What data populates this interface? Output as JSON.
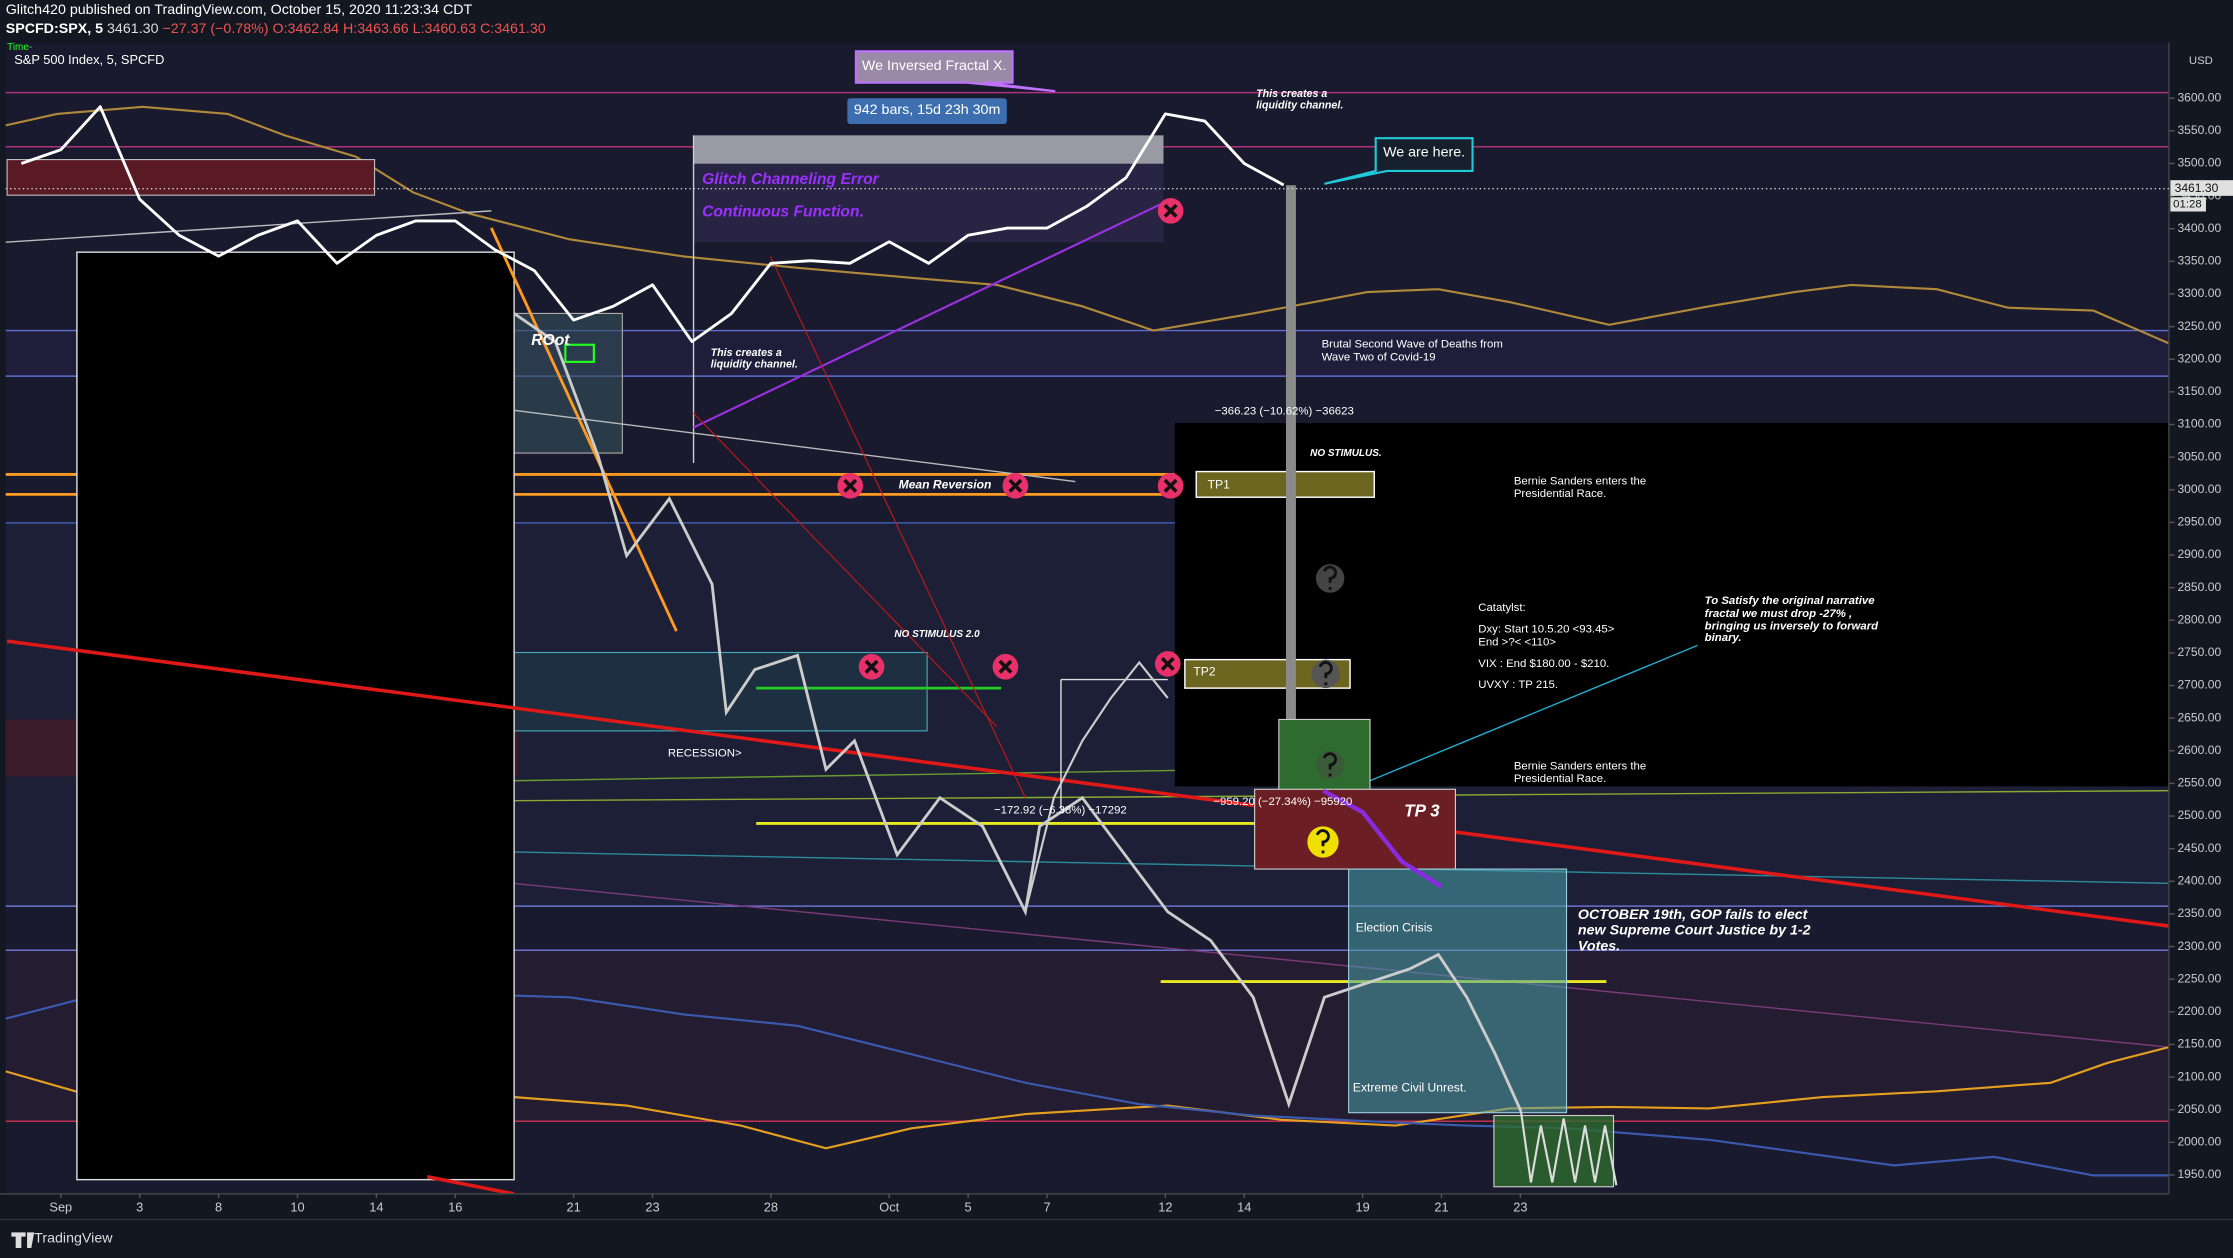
{
  "chart_data": {
    "type": "line",
    "header": {
      "publisher": "Glitch420 published on TradingView.com, October 15, 2020 11:23:34 CDT",
      "symbol": "SPCFD:SPX, 5",
      "change": "−27.37 (−0.78%)",
      "ohlc": "O:3462.84 H:3463.66 L:3460.63 C:3461.30",
      "title": "S&P 500 Index, 5, SPCFD",
      "time_label": "Time-",
      "currency": "USD",
      "countdown": "01:28",
      "brand": "TradingView"
    },
    "last_price": {
      "value": 3461.3,
      "label": "3461.30"
    },
    "categories": [
      null,
      "Sep",
      null,
      "3",
      null,
      "8",
      null,
      "10",
      null,
      "14",
      null,
      "16",
      null,
      null,
      "21",
      null,
      "23",
      null,
      null,
      "28",
      null,
      null,
      "Oct",
      null,
      "5",
      null,
      "7",
      null,
      null,
      "12",
      null,
      "14",
      null,
      null,
      "19",
      null,
      "21",
      null,
      "23"
    ],
    "series": [
      {
        "color": "#ffffff",
        "values": [
          3500,
          3521,
          3587,
          3445,
          3390,
          3358,
          3390,
          3412,
          3347,
          3390,
          3412,
          3412,
          3368,
          3336,
          3260,
          3281,
          3314,
          3227,
          3270,
          3347,
          3351,
          3347,
          3380,
          3347,
          3390,
          3401,
          3401,
          3434,
          3478,
          3576,
          3565,
          3500,
          3467,
          null,
          null,
          null,
          null,
          null,
          null
        ]
      },
      {
        "color": "#8a2be2",
        "values": [
          null,
          null,
          null,
          null,
          null,
          null,
          null,
          null,
          null,
          null,
          null,
          null,
          null,
          null,
          null,
          null,
          null,
          null,
          null,
          null,
          null,
          null,
          null,
          null,
          null,
          null,
          null,
          null,
          null,
          null,
          null,
          null,
          null,
          2539,
          2506,
          2430,
          2392,
          null,
          null
        ]
      }
    ],
    "ylim": [
      1921,
      3685
    ],
    "yticks": [
      {
        "value": 1950,
        "label": "1950.00"
      },
      {
        "value": 2000,
        "label": "2000.00"
      },
      {
        "value": 2050,
        "label": "2050.00"
      },
      {
        "value": 2100,
        "label": "2100.00"
      },
      {
        "value": 2150,
        "label": "2150.00"
      },
      {
        "value": 2200,
        "label": "2200.00"
      },
      {
        "value": 2250,
        "label": "2250.00"
      },
      {
        "value": 2300,
        "label": "2300.00"
      },
      {
        "value": 2350,
        "label": "2350.00"
      },
      {
        "value": 2400,
        "label": "2400.00"
      },
      {
        "value": 2450,
        "label": "2450.00"
      },
      {
        "value": 2500,
        "label": "2500.00"
      },
      {
        "value": 2550,
        "label": "2550.00"
      },
      {
        "value": 2600,
        "label": "2600.00"
      },
      {
        "value": 2650,
        "label": "2650.00"
      },
      {
        "value": 2700,
        "label": "2700.00"
      },
      {
        "value": 2750,
        "label": "2750.00"
      },
      {
        "value": 2800,
        "label": "2800.00"
      },
      {
        "value": 2850,
        "label": "2850.00"
      },
      {
        "value": 2900,
        "label": "2900.00"
      },
      {
        "value": 2950,
        "label": "2950.00"
      },
      {
        "value": 3000,
        "label": "3000.00"
      },
      {
        "value": 3050,
        "label": "3050.00"
      },
      {
        "value": 3100,
        "label": "3100.00"
      },
      {
        "value": 3150,
        "label": "3150.00"
      },
      {
        "value": 3200,
        "label": "3200.00"
      },
      {
        "value": 3250,
        "label": "3250.00"
      },
      {
        "value": 3300,
        "label": "3300.00"
      },
      {
        "value": 3350,
        "label": "3350.00"
      },
      {
        "value": 3400,
        "label": "3400.00"
      },
      {
        "value": 3450,
        "label": "3450.00"
      },
      {
        "value": 3500,
        "label": "3500.00"
      },
      {
        "value": 3550,
        "label": "3550.00"
      },
      {
        "value": 3600,
        "label": "3600.00"
      }
    ],
    "grid": false,
    "annotations": [
      "We Inversed Fractal X.",
      "942 bars, 15d 23h 30m",
      "This creates a liquidity channel.",
      "This creates a liquidity channel.",
      "We are here.",
      "Glitch Channeling Error",
      "Continuous Function.",
      "Brutal Second Wave of Deaths from Wave Two of Covid-19",
      "−366.23 (−10.62%) −36623",
      "NO STIMULUS.",
      "Bernie Sanders enters the Presidential Race.",
      "Mean Reversion",
      "TP1",
      "NO STIMULUS 2.0",
      "Catatylst:",
      "Dxy: Start 10.5.20 <93.45>",
      "End >?< <110>",
      "VIX : End $180.00 - $210.",
      "UVXY : TP 215.",
      "To Satisfy the original narrative fractal we must drop -27% , bringing us inversely to forward binary.",
      "TP2",
      "RECESSION>",
      "ROot",
      "Bernie Sanders enters the Presidential Race.",
      "−172.92 (−6.38%) −17292",
      "−959.20 (−27.34%) −95920",
      "TP 3",
      "Election Crisis",
      "OCTOBER 19th, GOP fails to elect new Supreme Court Justice by 1-2 Votes.",
      "Extreme Civil Unrest."
    ]
  }
}
